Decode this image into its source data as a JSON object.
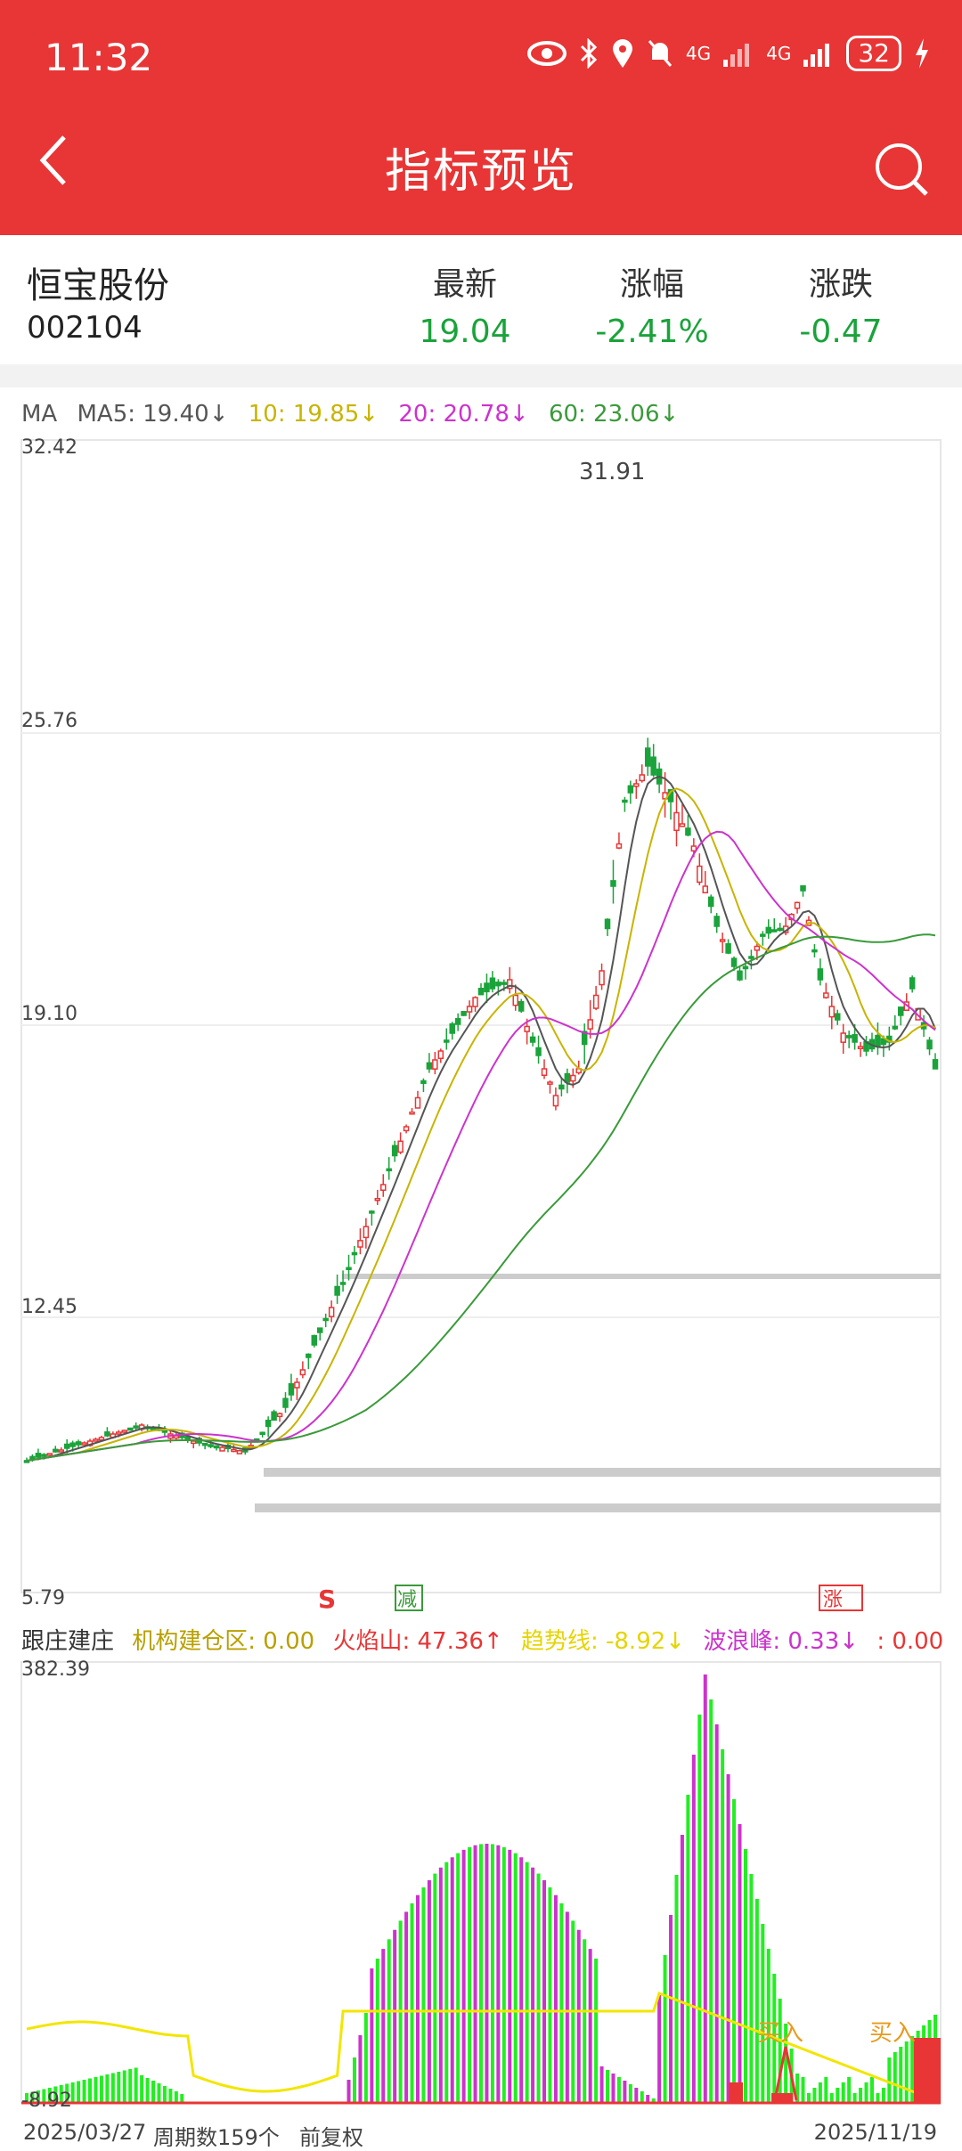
{
  "status": {
    "time": "11:32",
    "net1": "4G",
    "net2": "4G",
    "battery": "32"
  },
  "nav": {
    "title": "指标预览"
  },
  "stock": {
    "name": "恒宝股份",
    "code": "002104"
  },
  "quote": {
    "latest_label": "最新",
    "latest_value": "19.04",
    "change_pct_label": "涨幅",
    "change_pct_value": "-2.41%",
    "change_label": "涨跌",
    "change_value": "-0.47"
  },
  "ma_legend": {
    "title": "MA",
    "ma5": "MA5: 19.40↓",
    "ma10": "10: 19.85↓",
    "ma20": "20: 20.78↓",
    "ma60": "60: 23.06↓"
  },
  "price_axis": {
    "labels": [
      "32.42",
      "25.76",
      "19.10",
      "12.45",
      "5.79"
    ],
    "peak_label": "31.91"
  },
  "signals": {
    "sell": "S",
    "reduce": "减",
    "rise": "涨"
  },
  "indicator": {
    "title": "跟庄建庄",
    "inst": "机构建仓区: 0.00",
    "volcano": "火焰山: 47.36↑",
    "trend": "趋势线: -8.92↓",
    "wave": "波浪峰: 0.33↓",
    "extra": ": 0.00",
    "y_top": "382.39",
    "y_bottom": "-8.92",
    "buy1": "买入",
    "buy2": "买入"
  },
  "bottom": {
    "start_date": "2025/03/27",
    "periods": "周期数159个",
    "adjust": "前复权",
    "end_date": "2025/11/19"
  },
  "colors": {
    "red": "#e83535",
    "green": "#1aa33a",
    "ma5": "#555555",
    "ma10": "#c8b400",
    "ma20": "#cc33cc",
    "ma60": "#3a9a3a"
  }
}
